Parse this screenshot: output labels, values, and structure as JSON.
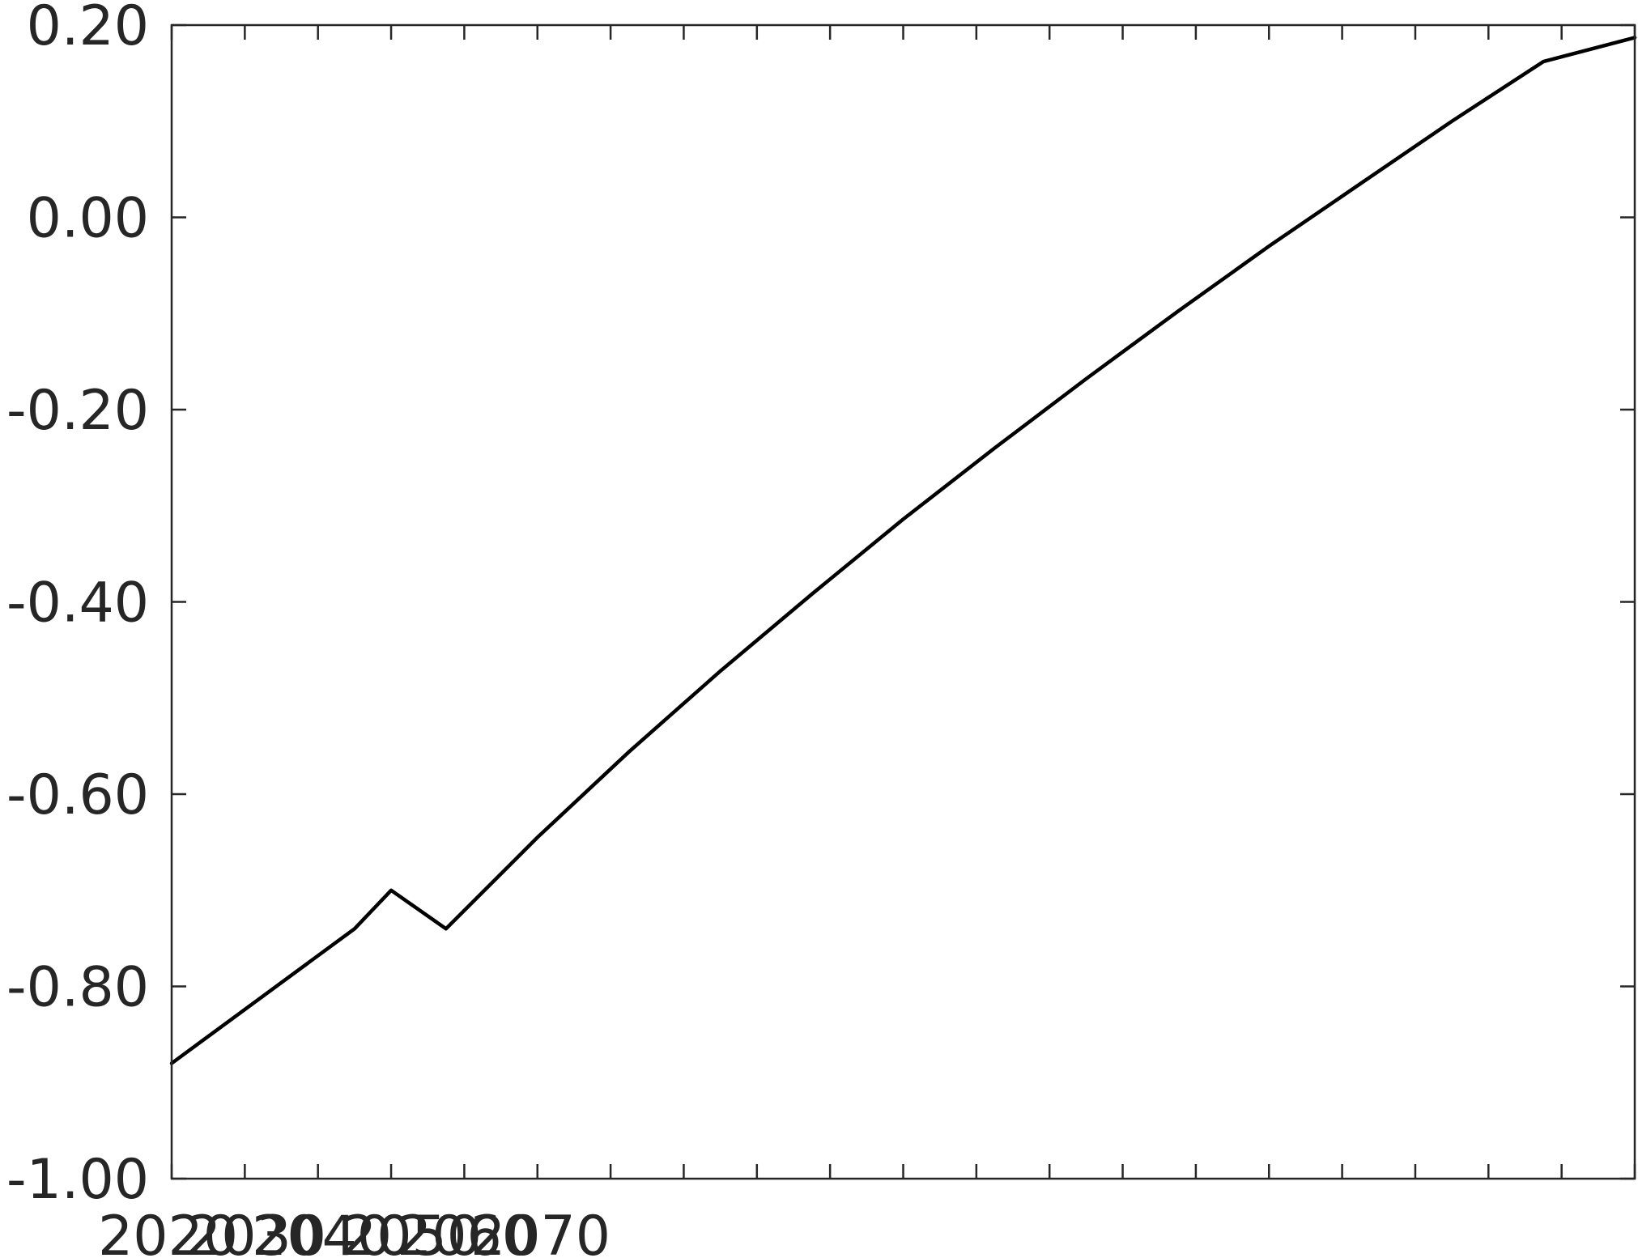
{
  "chart_data": {
    "type": "line",
    "title": "",
    "xlabel": "",
    "ylabel": "",
    "xlim": [
      2020,
      2100
    ],
    "ylim": [
      -1.0,
      0.2
    ],
    "grid": false,
    "legend": "none",
    "line_color": "#000000",
    "axis_color": "#262626",
    "y_ticks": [
      {
        "value": 0.2,
        "label": "0.20"
      },
      {
        "value": 0.0,
        "label": "0.00"
      },
      {
        "value": -0.2,
        "label": "-0.20"
      },
      {
        "value": -0.4,
        "label": "-0.40"
      },
      {
        "value": -0.6,
        "label": "-0.60"
      },
      {
        "value": -0.8,
        "label": "-0.80"
      },
      {
        "value": -1.0,
        "label": "-1.00"
      }
    ],
    "x_tick_values": [
      2020,
      2024,
      2028,
      2032,
      2036,
      2040,
      2044,
      2048,
      2052,
      2056,
      2060,
      2064,
      2068,
      2072,
      2076,
      2080,
      2084,
      2088,
      2092,
      2096,
      2100
    ],
    "x_tick_labels": [
      {
        "value": 2020,
        "label": "2020"
      },
      {
        "value": 2030,
        "label": "2030"
      },
      {
        "value": 2040,
        "label": "2040"
      },
      {
        "value": 2050,
        "label": "2050"
      },
      {
        "value": 2060,
        "label": "2060"
      },
      {
        "value": 2070,
        "label": "2070"
      }
    ],
    "series": [
      {
        "x": [
          2020,
          2025,
          2030,
          2032,
          2035,
          2040,
          2045,
          2050,
          2055,
          2060,
          2065,
          2070,
          2075,
          2080,
          2085,
          2090,
          2095,
          2100
        ],
        "y": [
          -0.88,
          -0.81,
          -0.74,
          -0.7,
          -0.74,
          -0.645,
          -0.556,
          -0.472,
          -0.392,
          -0.314,
          -0.24,
          -0.168,
          -0.098,
          -0.03,
          0.035,
          0.1,
          0.162,
          0.187
        ]
      }
    ]
  }
}
